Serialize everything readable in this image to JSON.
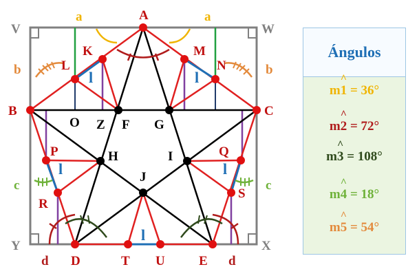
{
  "figure": {
    "vertices": {
      "A": "A",
      "B": "B",
      "C": "C",
      "D": "D",
      "E": "E",
      "F": "F",
      "G": "G",
      "H": "H",
      "I": "I",
      "J": "J",
      "K": "K",
      "L": "L",
      "M": "M",
      "N": "N",
      "O": "O",
      "Z": "Z",
      "P": "P",
      "Q": "Q",
      "R": "R",
      "S": "S",
      "T": "T",
      "U": "U",
      "V": "V",
      "W": "W",
      "X": "X",
      "Y": "Y"
    },
    "angle_labels": {
      "a": "a",
      "b": "b",
      "c": "c",
      "d": "d"
    },
    "side_label": "l"
  },
  "panel": {
    "title": "Ángulos",
    "rows": [
      {
        "prefix": "m",
        "num": "1",
        "value": " = 36°",
        "color": "#f0b400"
      },
      {
        "prefix": "m",
        "num": "2",
        "value": " = 72°",
        "color": "#b01c1c"
      },
      {
        "prefix": "m",
        "num": "3",
        "value": " = 108°",
        "color": "#2f4a1c"
      },
      {
        "prefix": "m",
        "num": "4",
        "value": " = 18°",
        "color": "#6fb23a"
      },
      {
        "prefix": "m",
        "num": "5",
        "value": " = 54°",
        "color": "#e38a3c"
      }
    ]
  },
  "colors": {
    "frame": "#808080",
    "pentagon": "#e02020",
    "star": "#000000",
    "blue": "#1f6fb5",
    "purple": "#8040a0",
    "green": "#20a040",
    "yellow": "#f0b400",
    "orange": "#e38a3c",
    "light_green": "#6fb23a",
    "dark_green": "#2f4a1c",
    "dark_red": "#b01c1c"
  }
}
